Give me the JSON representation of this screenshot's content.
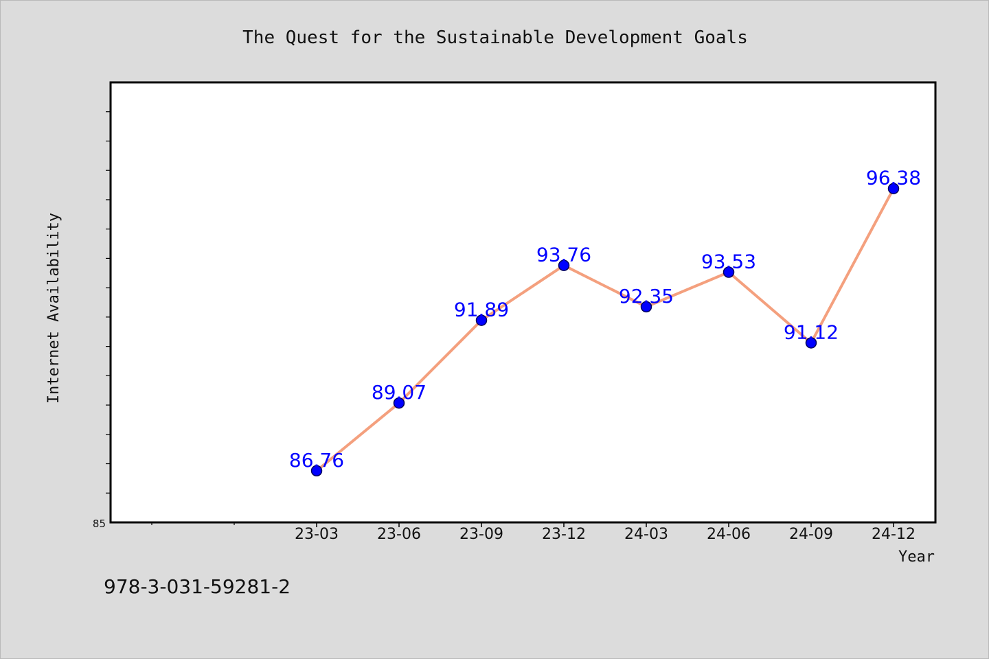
{
  "chart_data": {
    "type": "line",
    "title": "The Quest for the Sustainable Development Goals",
    "xlabel": "Year",
    "ylabel": "Internet Availability",
    "categories": [
      "23-03",
      "23-06",
      "23-09",
      "23-12",
      "24-03",
      "24-06",
      "24-09",
      "24-12"
    ],
    "series": [
      {
        "values": [
          86.76,
          89.07,
          91.89,
          93.76,
          92.35,
          93.53,
          91.12,
          96.38
        ]
      }
    ],
    "data_labels": [
      "86.76",
      "89.07",
      "91.89",
      "93.76",
      "92.35",
      "93.53",
      "91.12",
      "96.38"
    ],
    "y_tick_label": "85",
    "ylim": [
      85,
      100
    ],
    "grid": false,
    "legend": "none",
    "footer_text": "978-3-031-59281-2",
    "colors": {
      "background": "#dcdcdc",
      "plot_background": "#ffffff",
      "line": "#f4a07e",
      "marker": "#0000ff",
      "marker_edge": "#00005a",
      "data_label": "#0000ff",
      "text": "#111111"
    }
  }
}
